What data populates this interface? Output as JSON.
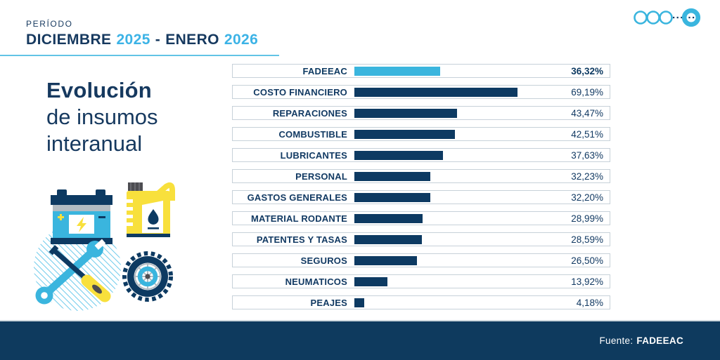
{
  "colors": {
    "navy": "#0d3a62",
    "text_navy": "#16395f",
    "cyan": "#3ab5de",
    "year_cyan": "#3cb3e6",
    "yellow": "#f8e03c",
    "underline_cyan": "#62c4e6",
    "row_border": "#c7d1d9",
    "footer_navy": "#0e3a5e"
  },
  "header": {
    "period_label": "PERÍODO",
    "month1": "DICIEMBRE",
    "year1": "2025",
    "separator": "-",
    "month2": "ENERO",
    "year2": "2026"
  },
  "title": {
    "line1": "Evolución",
    "line2": "de insumos",
    "line3": "interanual"
  },
  "chart_data": {
    "type": "bar",
    "orientation": "horizontal",
    "title": "Evolución de insumos interanual",
    "unit": "%",
    "xlim": [
      0,
      70
    ],
    "grid": false,
    "legend": false,
    "categories": [
      "FADEEAC",
      "COSTO FINANCIERO",
      "REPARACIONES",
      "COMBUSTIBLE",
      "LUBRICANTES",
      "PERSONAL",
      "GASTOS GENERALES",
      "MATERIAL RODANTE",
      "PATENTES Y TASAS",
      "SEGUROS",
      "NEUMATICOS",
      "PEAJES"
    ],
    "values": [
      36.32,
      69.19,
      43.47,
      42.51,
      37.63,
      32.23,
      32.2,
      28.99,
      28.59,
      26.5,
      13.92,
      4.18
    ],
    "value_labels": [
      "36,32%",
      "69,19%",
      "43,47%",
      "42,51%",
      "37,63%",
      "32,23%",
      "32,20%",
      "28,99%",
      "28,59%",
      "26,50%",
      "13,92%",
      "4,18%"
    ],
    "highlight_index": 0,
    "highlight_color": "#3ab5de",
    "bar_color": "#0d3a62"
  },
  "footer": {
    "source_label": "Fuente:",
    "source_value": "FADEEAC"
  },
  "decoration": {
    "icons": [
      "battery-icon",
      "oil-can-icon",
      "wrench-icon",
      "screwdriver-icon",
      "tire-icon",
      "circles-dots-decoration"
    ]
  }
}
